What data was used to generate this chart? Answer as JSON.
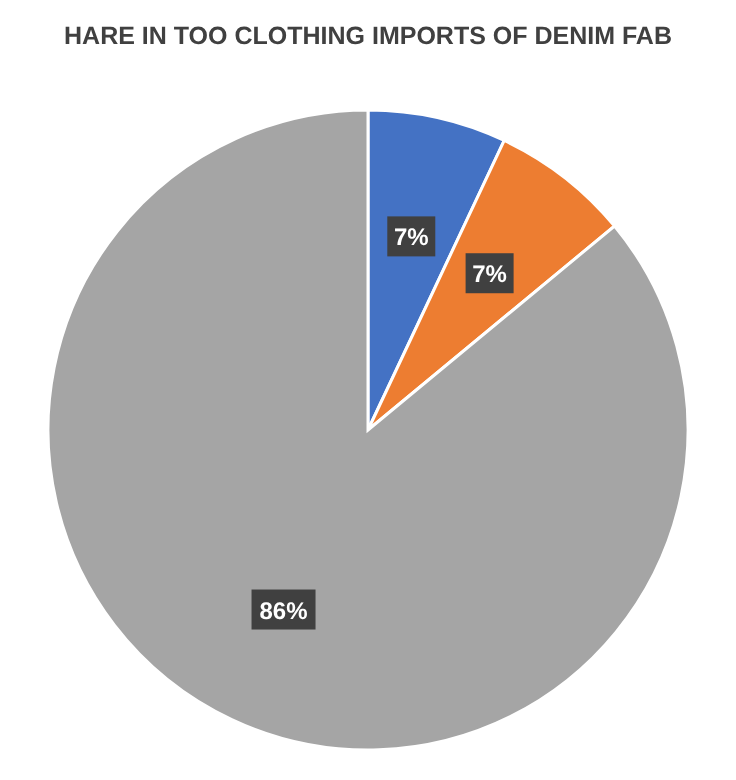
{
  "chart_data": {
    "type": "pie",
    "title": "HARE IN TOO CLOTHING IMPORTS OF DENIM FAB",
    "categories": [
      null,
      null,
      null
    ],
    "values": [
      7,
      7,
      86
    ],
    "value_labels": [
      "7%",
      "7%",
      "86%"
    ],
    "colors": [
      "#4472c4",
      "#ed7d31",
      "#a5a5a5"
    ]
  }
}
